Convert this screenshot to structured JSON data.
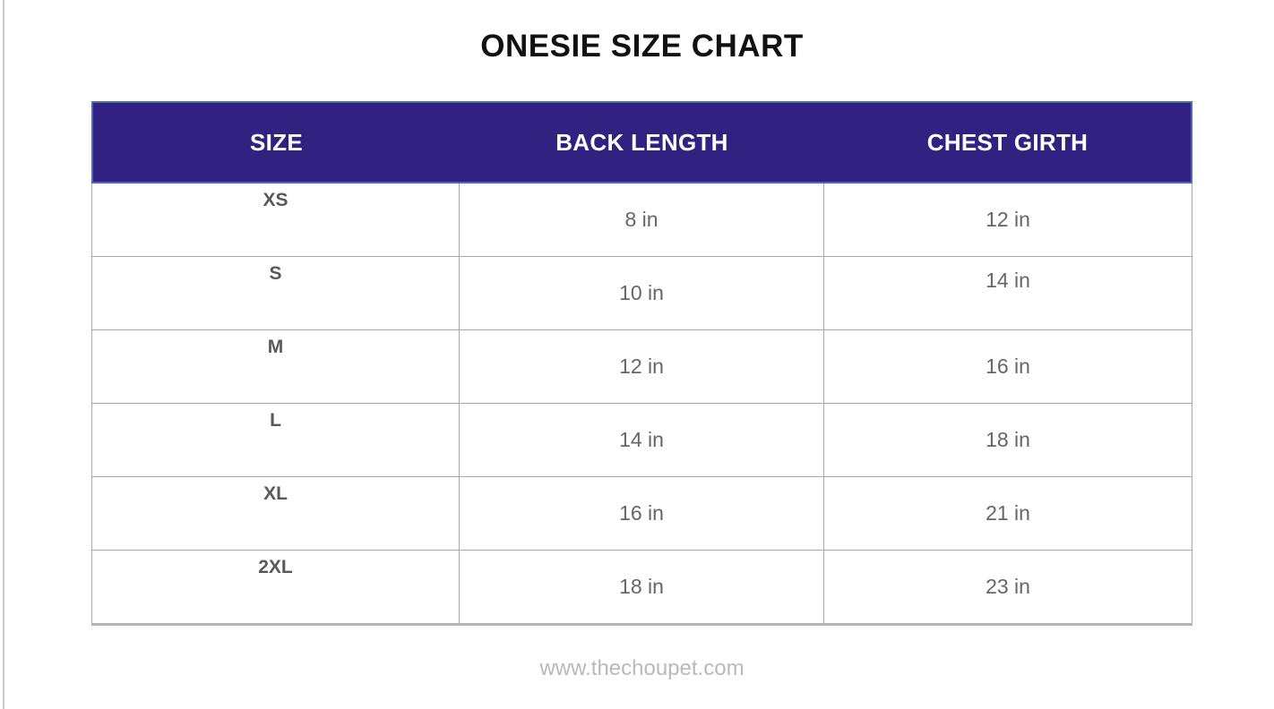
{
  "page": {
    "title": "ONESIE SIZE CHART",
    "footer": "www.thechoupet.com"
  },
  "table": {
    "columns": [
      {
        "label": "SIZE"
      },
      {
        "label": "BACK LENGTH"
      },
      {
        "label": "CHEST GIRTH"
      }
    ],
    "rows": [
      {
        "size": "XS",
        "back_length": "8 in",
        "chest_girth": "12 in"
      },
      {
        "size": "S",
        "back_length": "10 in",
        "chest_girth": "14 in"
      },
      {
        "size": "M",
        "back_length": "12 in",
        "chest_girth": "16 in"
      },
      {
        "size": "L",
        "back_length": "14 in",
        "chest_girth": "18 in"
      },
      {
        "size": "XL",
        "back_length": "16 in",
        "chest_girth": "21 in"
      },
      {
        "size": "2XL",
        "back_length": "18 in",
        "chest_girth": "23 in"
      }
    ]
  },
  "chart_data": {
    "type": "table",
    "title": "ONESIE SIZE CHART",
    "columns": [
      "SIZE",
      "BACK LENGTH",
      "CHEST GIRTH"
    ],
    "rows": [
      [
        "XS",
        "8 in",
        "12 in"
      ],
      [
        "S",
        "10 in",
        "14 in"
      ],
      [
        "M",
        "12 in",
        "16 in"
      ],
      [
        "L",
        "14 in",
        "18 in"
      ],
      [
        "XL",
        "16 in",
        "21 in"
      ],
      [
        "2XL",
        "18 in",
        "23 in"
      ]
    ],
    "units": "in",
    "footer": "www.thechoupet.com"
  },
  "colors": {
    "header_bg": "#312180",
    "header_border": "#4E6BB0",
    "header_text": "#FFFFFF",
    "grid_border": "#A8A8A8",
    "grid_bottom": "#B5B5B5",
    "size_text": "#595959",
    "value_text": "#666666",
    "title_text": "#111111",
    "footer_text": "#B9B9B9",
    "page_edge": "#C9C9C9"
  }
}
